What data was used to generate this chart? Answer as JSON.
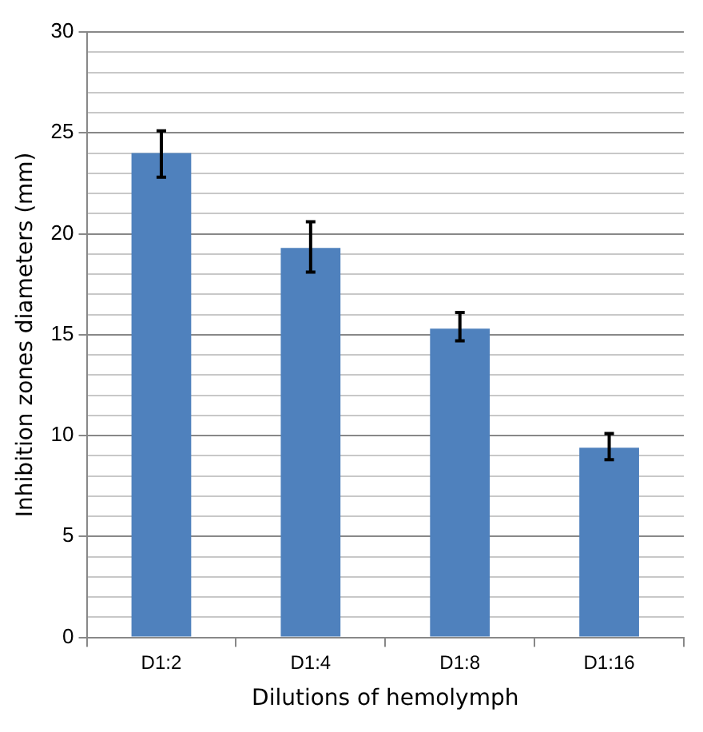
{
  "chart_data": {
    "type": "bar",
    "xlabel": "Dilutions of hemolymph",
    "ylabel": "Inhibition zones diameters (mm)",
    "categories": [
      "D1:2",
      "D1:4",
      "D1:8",
      "D1:16"
    ],
    "values": [
      24.0,
      19.3,
      15.3,
      9.4
    ],
    "errors": [
      [
        22.8,
        25.1
      ],
      [
        18.1,
        20.6
      ],
      [
        14.7,
        16.1
      ],
      [
        8.8,
        10.1
      ]
    ],
    "color": "#4f81bd",
    "ylim": [
      0,
      30
    ],
    "yticks": [
      0,
      {
        "value": 1,
        "label": null
      },
      {
        "value": 2,
        "label": null
      },
      {
        "value": 3,
        "label": null
      },
      {
        "value": 4,
        "label": null
      },
      5,
      {
        "value": 6,
        "label": null
      },
      {
        "value": 7,
        "label": null
      },
      {
        "value": 8,
        "label": null
      },
      {
        "value": 9,
        "label": null
      },
      10,
      {
        "value": 11,
        "label": null
      },
      {
        "value": 12,
        "label": null
      },
      {
        "value": 13,
        "label": null
      },
      {
        "value": 14,
        "label": null
      },
      15,
      {
        "value": 16,
        "label": null
      },
      {
        "value": 17,
        "label": null
      },
      {
        "value": 18,
        "label": null
      },
      {
        "value": 19,
        "label": null
      },
      20,
      {
        "value": 21,
        "label": null
      },
      {
        "value": 22,
        "label": null
      },
      {
        "value": 23,
        "label": null
      },
      {
        "value": 24,
        "label": null
      },
      25,
      {
        "value": 26,
        "label": null
      },
      {
        "value": 27,
        "label": null
      },
      {
        "value": 28,
        "label": null
      },
      {
        "value": 29,
        "label": null
      },
      30
    ],
    "grid": true,
    "legend": false
  }
}
